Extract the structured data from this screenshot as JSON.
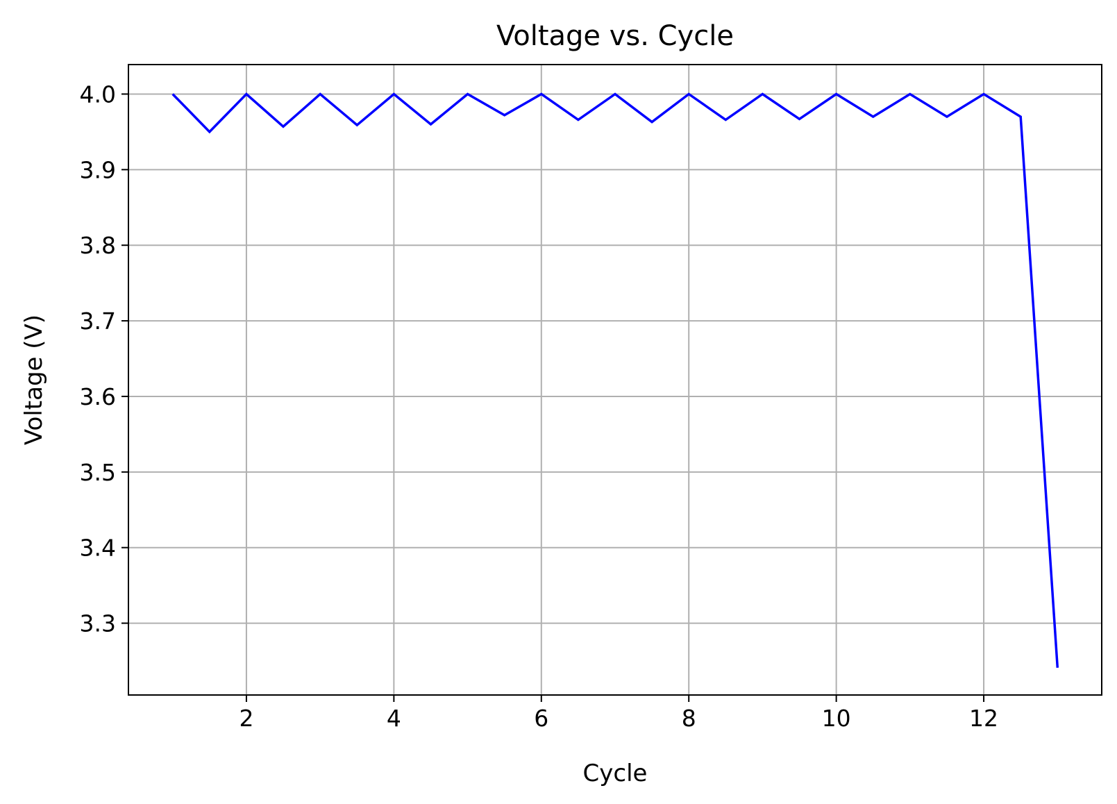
{
  "chart_data": {
    "type": "line",
    "title": "Voltage vs. Cycle",
    "xlabel": "Cycle",
    "ylabel": "Voltage (V)",
    "xlim": [
      0.4,
      13.6
    ],
    "ylim": [
      3.205,
      4.039
    ],
    "xticks": [
      2,
      4,
      6,
      8,
      10,
      12
    ],
    "xtick_labels": [
      "2",
      "4",
      "6",
      "8",
      "10",
      "12"
    ],
    "yticks": [
      3.3,
      3.4,
      3.5,
      3.6,
      3.7,
      3.8,
      3.9,
      4.0
    ],
    "ytick_labels": [
      "3.3",
      "3.4",
      "3.5",
      "3.6",
      "3.7",
      "3.8",
      "3.9",
      "4.0"
    ],
    "grid": true,
    "series": [
      {
        "color": "#0000ff",
        "x": [
          1,
          1.5,
          2,
          2.5,
          3,
          3.5,
          4,
          4.5,
          5,
          5.5,
          6,
          6.5,
          7,
          7.5,
          8,
          8.5,
          9,
          9.5,
          10,
          10.5,
          11,
          11.5,
          12,
          12.5,
          13
        ],
        "y": [
          4.0,
          3.95,
          4.0,
          3.957,
          4.0,
          3.959,
          4.0,
          3.96,
          4.0,
          3.972,
          4.0,
          3.966,
          4.0,
          3.963,
          4.0,
          3.966,
          4.0,
          3.967,
          4.0,
          3.97,
          4.0,
          3.97,
          4.0,
          3.97,
          3.241
        ]
      }
    ]
  }
}
